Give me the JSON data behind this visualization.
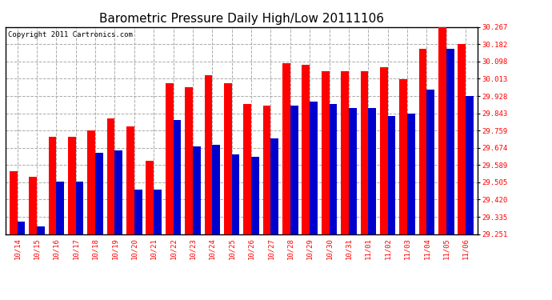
{
  "title": "Barometric Pressure Daily High/Low 20111106",
  "copyright": "Copyright 2011 Cartronics.com",
  "dates": [
    "10/14",
    "10/15",
    "10/16",
    "10/17",
    "10/18",
    "10/19",
    "10/20",
    "10/21",
    "10/22",
    "10/23",
    "10/24",
    "10/25",
    "10/26",
    "10/27",
    "10/28",
    "10/29",
    "10/30",
    "10/31",
    "11/01",
    "11/02",
    "11/03",
    "11/04",
    "11/05",
    "11/06"
  ],
  "highs": [
    29.56,
    29.53,
    29.73,
    29.73,
    29.76,
    29.82,
    29.78,
    29.61,
    29.99,
    29.97,
    30.03,
    29.99,
    29.89,
    29.88,
    30.09,
    30.08,
    30.05,
    30.05,
    30.05,
    30.07,
    30.01,
    30.16,
    30.267,
    30.182
  ],
  "lows": [
    29.31,
    29.29,
    29.51,
    29.51,
    29.65,
    29.66,
    29.47,
    29.47,
    29.81,
    29.68,
    29.69,
    29.64,
    29.63,
    29.72,
    29.88,
    29.9,
    29.89,
    29.87,
    29.87,
    29.83,
    29.84,
    29.96,
    30.16,
    29.928
  ],
  "ylim_min": 29.251,
  "ylim_max": 30.267,
  "yticks": [
    29.251,
    29.335,
    29.42,
    29.505,
    29.589,
    29.674,
    29.759,
    29.843,
    29.928,
    30.013,
    30.098,
    30.182,
    30.267
  ],
  "high_color": "#FF0000",
  "low_color": "#0000CC",
  "bg_color": "#FFFFFF",
  "plot_bg_color": "#FFFFFF",
  "grid_color": "#AAAAAA",
  "title_fontsize": 11,
  "copyright_fontsize": 6.5,
  "tick_fontsize": 6.5,
  "bar_width": 0.4
}
